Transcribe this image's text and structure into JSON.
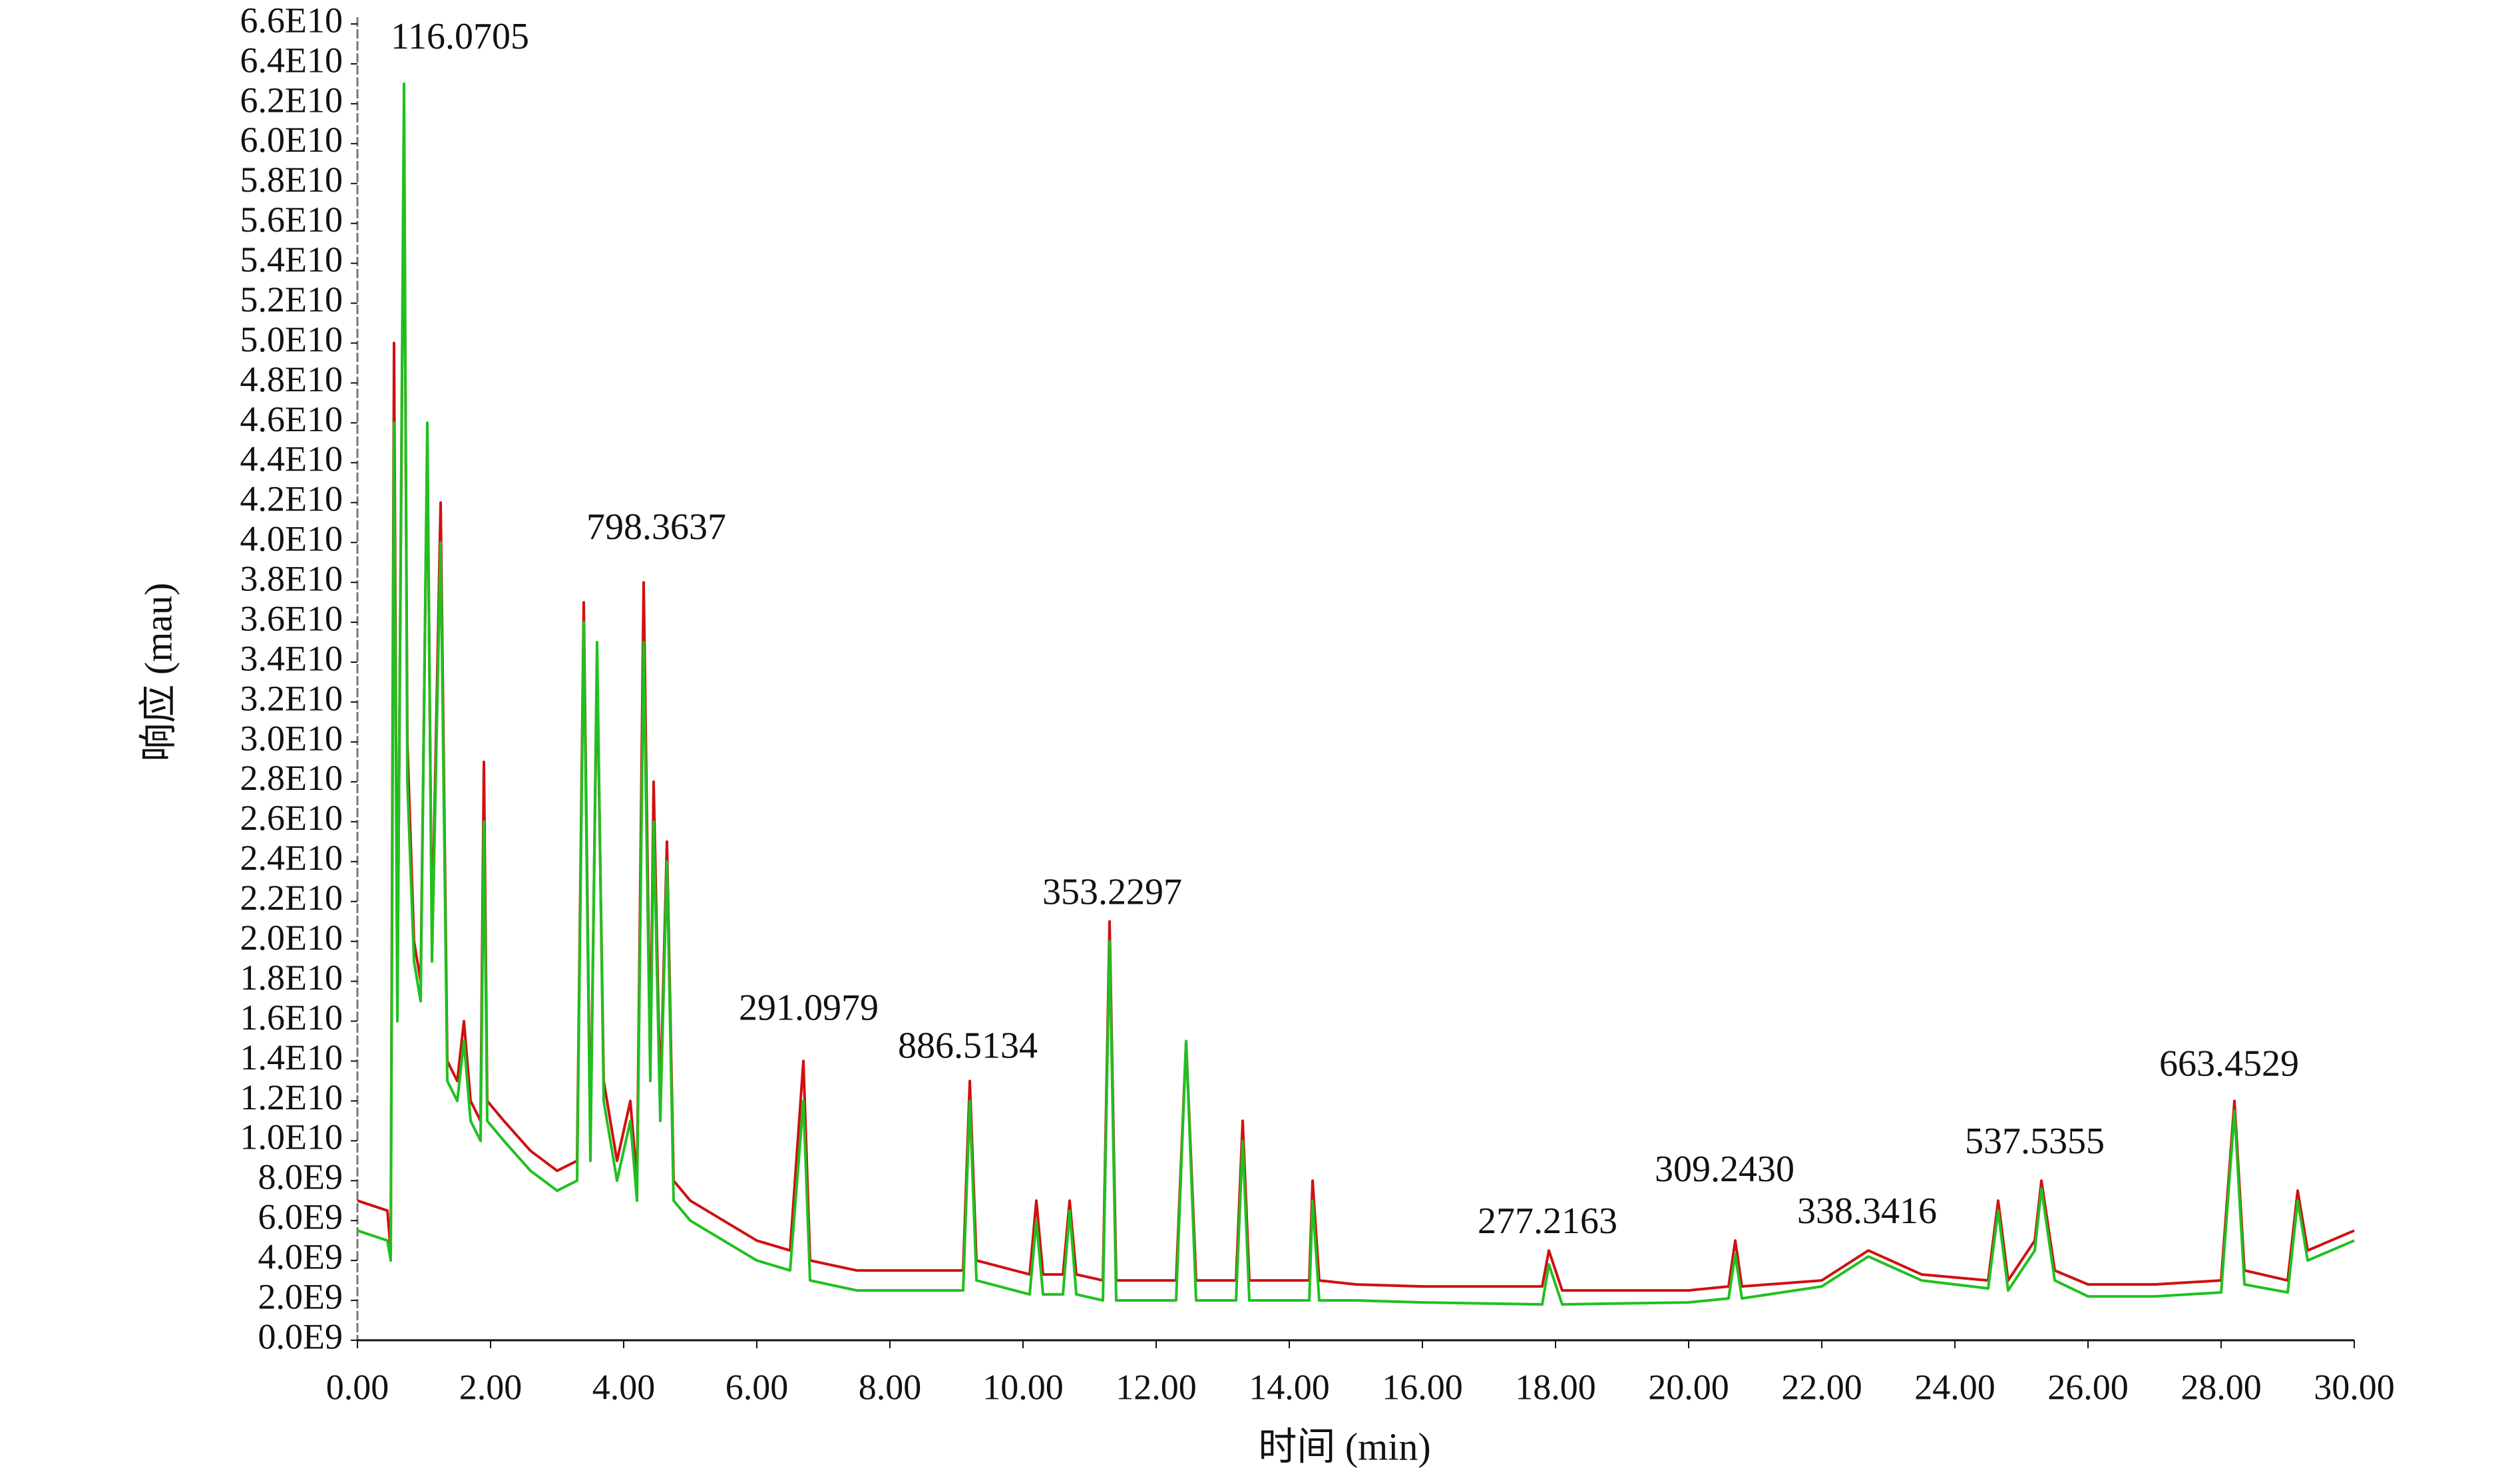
{
  "chart_data": {
    "type": "line",
    "xlabel": "时间 (min)",
    "ylabel": "响应 (mau)",
    "xlim": [
      0,
      30
    ],
    "ylim": [
      0,
      66000000000
    ],
    "xticks": [
      {
        "value": 0,
        "label": "0.00"
      },
      {
        "value": 2,
        "label": "2.00"
      },
      {
        "value": 4,
        "label": "4.00"
      },
      {
        "value": 6,
        "label": "6.00"
      },
      {
        "value": 8,
        "label": "8.00"
      },
      {
        "value": 10,
        "label": "10.00"
      },
      {
        "value": 12,
        "label": "12.00"
      },
      {
        "value": 14,
        "label": "14.00"
      },
      {
        "value": 16,
        "label": "16.00"
      },
      {
        "value": 18,
        "label": "18.00"
      },
      {
        "value": 20,
        "label": "20.00"
      },
      {
        "value": 22,
        "label": "22.00"
      },
      {
        "value": 24,
        "label": "24.00"
      },
      {
        "value": 26,
        "label": "26.00"
      },
      {
        "value": 28,
        "label": "28.00"
      },
      {
        "value": 30,
        "label": "30.00"
      }
    ],
    "yticks": [
      {
        "value": 0,
        "label": "0.0E9"
      },
      {
        "value": 2000000000.0,
        "label": "2.0E9"
      },
      {
        "value": 4000000000.0,
        "label": "4.0E9"
      },
      {
        "value": 6000000000.0,
        "label": "6.0E9"
      },
      {
        "value": 8000000000.0,
        "label": "8.0E9"
      },
      {
        "value": 10000000000.0,
        "label": "1.0E10"
      },
      {
        "value": 12000000000.0,
        "label": "1.2E10"
      },
      {
        "value": 14000000000.0,
        "label": "1.4E10"
      },
      {
        "value": 16000000000.0,
        "label": "1.6E10"
      },
      {
        "value": 18000000000.0,
        "label": "1.8E10"
      },
      {
        "value": 20000000000.0,
        "label": "2.0E10"
      },
      {
        "value": 22000000000.0,
        "label": "2.2E10"
      },
      {
        "value": 24000000000.0,
        "label": "2.4E10"
      },
      {
        "value": 26000000000.0,
        "label": "2.6E10"
      },
      {
        "value": 28000000000.0,
        "label": "2.8E10"
      },
      {
        "value": 30000000000.0,
        "label": "3.0E10"
      },
      {
        "value": 32000000000.0,
        "label": "3.2E10"
      },
      {
        "value": 34000000000.0,
        "label": "3.4E10"
      },
      {
        "value": 36000000000.0,
        "label": "3.6E10"
      },
      {
        "value": 38000000000.0,
        "label": "3.8E10"
      },
      {
        "value": 40000000000.0,
        "label": "4.0E10"
      },
      {
        "value": 42000000000.0,
        "label": "4.2E10"
      },
      {
        "value": 44000000000.0,
        "label": "4.4E10"
      },
      {
        "value": 46000000000.0,
        "label": "4.6E10"
      },
      {
        "value": 48000000000.0,
        "label": "4.8E10"
      },
      {
        "value": 50000000000.0,
        "label": "5.0E10"
      },
      {
        "value": 52000000000.0,
        "label": "5.2E10"
      },
      {
        "value": 54000000000.0,
        "label": "5.4E10"
      },
      {
        "value": 56000000000.0,
        "label": "5.6E10"
      },
      {
        "value": 58000000000.0,
        "label": "5.8E10"
      },
      {
        "value": 60000000000.0,
        "label": "6.0E10"
      },
      {
        "value": 62000000000.0,
        "label": "6.2E10"
      },
      {
        "value": 64000000000.0,
        "label": "6.4E10"
      },
      {
        "value": 66000000000.0,
        "label": "6.6E10"
      }
    ],
    "x": [
      0,
      0.45,
      0.5,
      0.55,
      0.6,
      0.7,
      0.75,
      0.85,
      0.95,
      1.05,
      1.12,
      1.25,
      1.35,
      1.5,
      1.6,
      1.7,
      1.85,
      1.9,
      1.95,
      2.2,
      2.6,
      3.0,
      3.3,
      3.4,
      3.5,
      3.6,
      3.7,
      3.9,
      4.1,
      4.2,
      4.3,
      4.4,
      4.45,
      4.55,
      4.65,
      4.75,
      5.0,
      5.5,
      6.0,
      6.5,
      6.7,
      6.8,
      7.5,
      8.5,
      9.1,
      9.2,
      9.3,
      10.1,
      10.2,
      10.3,
      10.6,
      10.7,
      10.8,
      11.2,
      11.3,
      11.4,
      12.3,
      12.45,
      12.6,
      13.2,
      13.3,
      13.4,
      14.3,
      14.35,
      14.45,
      15.0,
      16.0,
      17.8,
      17.9,
      18.1,
      20.0,
      20.6,
      20.7,
      20.8,
      22.0,
      22.7,
      23.5,
      24.5,
      24.65,
      24.8,
      25.2,
      25.3,
      25.5,
      26.0,
      27.0,
      28.0,
      28.2,
      28.35,
      29.0,
      29.15,
      29.3,
      30.0
    ],
    "series": [
      {
        "color": "#d01010",
        "values": [
          7000000000.0,
          6500000000.0,
          4500000000.0,
          50000000000.0,
          17000000000.0,
          61000000000.0,
          30000000000.0,
          20000000000.0,
          18000000000.0,
          45000000000.0,
          20000000000.0,
          42000000000.0,
          14000000000.0,
          13000000000.0,
          16000000000.0,
          12000000000.0,
          11000000000.0,
          29000000000.0,
          12000000000.0,
          11000000000.0,
          9500000000.0,
          8500000000.0,
          9000000000.0,
          37000000000.0,
          10000000000.0,
          34000000000.0,
          13000000000.0,
          9000000000.0,
          12000000000.0,
          8000000000.0,
          38000000000.0,
          14000000000.0,
          28000000000.0,
          12000000000.0,
          25000000000.0,
          8000000000.0,
          7000000000.0,
          6000000000.0,
          5000000000.0,
          4500000000.0,
          14000000000.0,
          4000000000.0,
          3500000000.0,
          3500000000.0,
          3500000000.0,
          13000000000.0,
          4000000000.0,
          3300000000.0,
          7000000000.0,
          3300000000.0,
          3300000000.0,
          7000000000.0,
          3300000000.0,
          3000000000.0,
          21000000000.0,
          3000000000.0,
          3000000000.0,
          15000000000.0,
          3000000000.0,
          3000000000.0,
          11000000000.0,
          3000000000.0,
          3000000000.0,
          8000000000.0,
          3000000000.0,
          2800000000.0,
          2700000000.0,
          2700000000.0,
          4500000000.0,
          2500000000.0,
          2500000000.0,
          2700000000.0,
          5000000000.0,
          2700000000.0,
          3000000000.0,
          4500000000.0,
          3300000000.0,
          3000000000.0,
          7000000000.0,
          3000000000.0,
          5000000000.0,
          8000000000.0,
          3500000000.0,
          2800000000.0,
          2800000000.0,
          3000000000.0,
          12000000000.0,
          3500000000.0,
          3000000000.0,
          7500000000.0,
          4500000000.0,
          5500000000.0
        ]
      },
      {
        "color": "#20c020",
        "values": [
          5500000000.0,
          5000000000.0,
          4000000000.0,
          46000000000.0,
          16000000000.0,
          63000000000.0,
          28000000000.0,
          19000000000.0,
          17000000000.0,
          46000000000.0,
          19000000000.0,
          40000000000.0,
          13000000000.0,
          12000000000.0,
          15000000000.0,
          11000000000.0,
          10000000000.0,
          26000000000.0,
          11000000000.0,
          10000000000.0,
          8500000000.0,
          7500000000.0,
          8000000000.0,
          36000000000.0,
          9000000000.0,
          35000000000.0,
          12000000000.0,
          8000000000.0,
          11000000000.0,
          7000000000.0,
          35000000000.0,
          13000000000.0,
          26000000000.0,
          11000000000.0,
          24000000000.0,
          7000000000.0,
          6000000000.0,
          5000000000.0,
          4000000000.0,
          3500000000.0,
          12000000000.0,
          3000000000.0,
          2500000000.0,
          2500000000.0,
          2500000000.0,
          12000000000.0,
          3000000000.0,
          2300000000.0,
          6000000000.0,
          2300000000.0,
          2300000000.0,
          6500000000.0,
          2300000000.0,
          2000000000.0,
          20000000000.0,
          2000000000.0,
          2000000000.0,
          15000000000.0,
          2000000000.0,
          2000000000.0,
          10000000000.0,
          2000000000.0,
          2000000000.0,
          7000000000.0,
          2000000000.0,
          2000000000.0,
          1900000000.0,
          1800000000.0,
          3800000000.0,
          1800000000.0,
          1900000000.0,
          2100000000.0,
          4300000000.0,
          2100000000.0,
          2700000000.0,
          4200000000.0,
          3000000000.0,
          2600000000.0,
          6500000000.0,
          2500000000.0,
          4500000000.0,
          7600000000.0,
          3000000000.0,
          2200000000.0,
          2200000000.0,
          2400000000.0,
          11500000000.0,
          2800000000.0,
          2400000000.0,
          7000000000.0,
          4000000000.0,
          5000000000.0
        ]
      }
    ],
    "annotations": [
      {
        "text": "116.0705",
        "x": 1.54,
        "y": 65200000000.0
      },
      {
        "text": "798.3637",
        "x": 4.49,
        "y": 40600000000.0
      },
      {
        "text": "291.0979",
        "x": 6.78,
        "y": 16500000000.0
      },
      {
        "text": "886.5134",
        "x": 9.17,
        "y": 14600000000.0
      },
      {
        "text": "353.2297",
        "x": 11.34,
        "y": 22300000000.0
      },
      {
        "text": "277.2163",
        "x": 17.88,
        "y": 5800000000.0
      },
      {
        "text": "309.2430",
        "x": 20.54,
        "y": 8400000000.0
      },
      {
        "text": "338.3416",
        "x": 22.68,
        "y": 6300000000.0
      },
      {
        "text": "537.5355",
        "x": 25.2,
        "y": 9800000000.0
      },
      {
        "text": "663.4529",
        "x": 28.12,
        "y": 13700000000.0
      }
    ]
  }
}
